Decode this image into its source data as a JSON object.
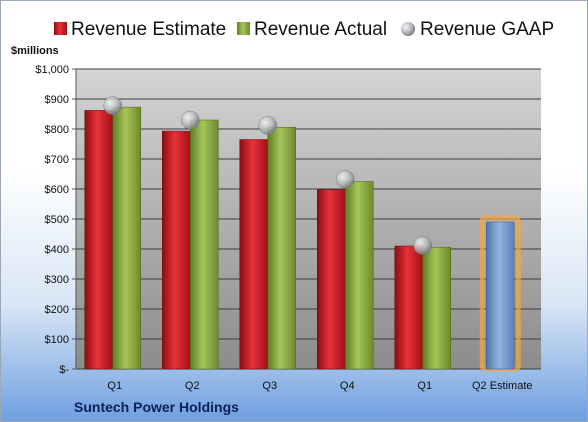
{
  "company": "Suntech Power Holdings",
  "chart_data": {
    "type": "bar",
    "ylabel": "$millions",
    "ylim": [
      0,
      1000
    ],
    "yticks": [
      0,
      100,
      200,
      300,
      400,
      500,
      600,
      700,
      800,
      900,
      1000
    ],
    "ytick_labels": [
      "$-",
      "$100",
      "$200",
      "$300",
      "$400",
      "$500",
      "$600",
      "$700",
      "$800",
      "$900",
      "$1,000"
    ],
    "categories": [
      "Q1",
      "Q2",
      "Q3",
      "Q4",
      "Q1",
      "Q2 Estimate"
    ],
    "series": [
      {
        "name": "Revenue Estimate",
        "type": "bar",
        "color": "#c8141e",
        "values": [
          862,
          793,
          765,
          598,
          410,
          null
        ]
      },
      {
        "name": "Revenue Actual",
        "type": "bar",
        "color": "#8aab3e",
        "values": [
          873,
          830,
          806,
          625,
          406,
          null
        ]
      },
      {
        "name": "Revenue GAAP",
        "type": "scatter",
        "color": "#b0b3b8",
        "values": [
          878,
          830,
          812,
          632,
          412,
          null
        ]
      },
      {
        "name": "Q2 Estimate",
        "type": "bar",
        "color": "#6f95c9",
        "highlight": "#f5a742",
        "values": [
          null,
          null,
          null,
          null,
          null,
          490
        ]
      }
    ],
    "grid": true,
    "legend_position": "top"
  }
}
